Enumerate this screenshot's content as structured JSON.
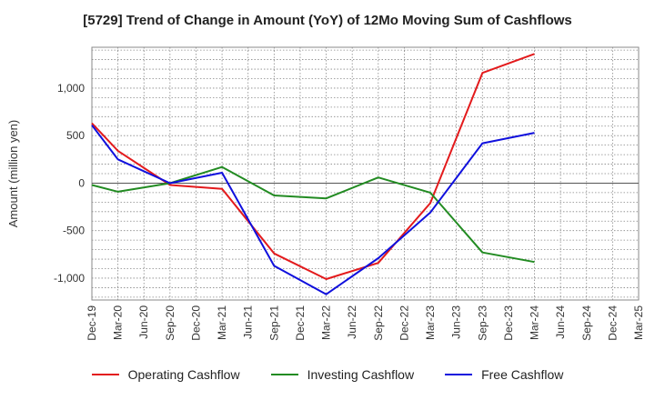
{
  "chart_data": {
    "type": "line",
    "title": "[5729]  Trend of Change in Amount (YoY) of 12Mo Moving Sum of Cashflows",
    "xlabel": "",
    "ylabel": "Amount (million yen)",
    "ylim": [
      -1230,
      1430
    ],
    "yticks": [
      -1000,
      -500,
      0,
      500,
      1000
    ],
    "ytick_labels": [
      "-1,000",
      "-500",
      "0",
      "500",
      "1,000"
    ],
    "grid": true,
    "legend_position": "bottom",
    "categories": [
      "Dec-19",
      "Mar-20",
      "Jun-20",
      "Sep-20",
      "Dec-20",
      "Mar-21",
      "Jun-21",
      "Sep-21",
      "Dec-21",
      "Mar-22",
      "Jun-22",
      "Sep-22",
      "Dec-22",
      "Mar-23",
      "Jun-23",
      "Sep-23",
      "Dec-23",
      "Mar-24",
      "Jun-24",
      "Sep-24",
      "Dec-24",
      "Mar-25"
    ],
    "series": [
      {
        "name": "Operating Cashflow",
        "color": "#e31a1c",
        "values": [
          630,
          340,
          null,
          -20,
          null,
          -60,
          null,
          -740,
          null,
          -1010,
          null,
          -840,
          null,
          -210,
          null,
          1160,
          null,
          1360,
          null,
          null,
          null,
          null
        ]
      },
      {
        "name": "Investing Cashflow",
        "color": "#228b22",
        "values": [
          -20,
          -90,
          null,
          0,
          null,
          170,
          null,
          -130,
          null,
          -160,
          null,
          60,
          null,
          -100,
          null,
          -730,
          null,
          -830,
          null,
          null,
          null,
          null
        ]
      },
      {
        "name": "Free Cashflow",
        "color": "#1010dd",
        "values": [
          610,
          250,
          null,
          0,
          null,
          110,
          null,
          -870,
          null,
          -1170,
          null,
          -790,
          null,
          -310,
          null,
          420,
          null,
          530,
          null,
          null,
          null,
          null
        ]
      }
    ]
  }
}
